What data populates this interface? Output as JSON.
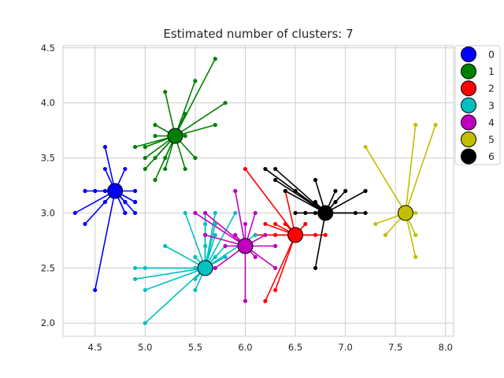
{
  "chart_data": {
    "type": "scatter",
    "title": "Estimated number of clusters: 7",
    "xlabel": "",
    "ylabel": "",
    "xlim": [
      4.18,
      8.08
    ],
    "ylim": [
      1.88,
      4.52
    ],
    "xticks": [
      4.5,
      5.0,
      5.5,
      6.0,
      6.5,
      7.0,
      7.5,
      8.0
    ],
    "yticks": [
      2.0,
      2.5,
      3.0,
      3.5,
      4.0,
      4.5
    ],
    "grid": true,
    "legend_position": "upper-right-outside",
    "series": [
      {
        "name": "0",
        "color": "#0000ff",
        "center": [
          4.7,
          3.2
        ],
        "points": [
          [
            4.3,
            3.0
          ],
          [
            4.4,
            2.9
          ],
          [
            4.4,
            3.2
          ],
          [
            4.5,
            2.3
          ],
          [
            4.5,
            3.2
          ],
          [
            4.6,
            3.1
          ],
          [
            4.6,
            3.2
          ],
          [
            4.6,
            3.4
          ],
          [
            4.6,
            3.6
          ],
          [
            4.7,
            3.2
          ],
          [
            4.7,
            3.2
          ],
          [
            4.8,
            3.0
          ],
          [
            4.8,
            3.0
          ],
          [
            4.8,
            3.1
          ],
          [
            4.8,
            3.1
          ],
          [
            4.8,
            3.4
          ],
          [
            4.9,
            3.0
          ],
          [
            4.9,
            3.1
          ],
          [
            4.9,
            3.1
          ],
          [
            4.9,
            3.2
          ]
        ]
      },
      {
        "name": "1",
        "color": "#008000",
        "center": [
          5.3,
          3.7
        ],
        "points": [
          [
            4.9,
            3.6
          ],
          [
            5.0,
            3.4
          ],
          [
            5.0,
            3.5
          ],
          [
            5.0,
            3.6
          ],
          [
            5.0,
            3.6
          ],
          [
            5.1,
            3.3
          ],
          [
            5.1,
            3.5
          ],
          [
            5.1,
            3.7
          ],
          [
            5.1,
            3.8
          ],
          [
            5.2,
            3.4
          ],
          [
            5.2,
            3.5
          ],
          [
            5.2,
            4.1
          ],
          [
            5.3,
            3.7
          ],
          [
            5.4,
            3.4
          ],
          [
            5.4,
            3.7
          ],
          [
            5.4,
            3.9
          ],
          [
            5.5,
            3.5
          ],
          [
            5.5,
            4.2
          ],
          [
            5.7,
            3.8
          ],
          [
            5.7,
            4.4
          ],
          [
            5.8,
            4.0
          ]
        ]
      },
      {
        "name": "2",
        "color": "#ff0000",
        "center": [
          6.5,
          2.8
        ],
        "points": [
          [
            6.0,
            3.4
          ],
          [
            6.1,
            2.8
          ],
          [
            6.2,
            2.2
          ],
          [
            6.2,
            2.9
          ],
          [
            6.3,
            2.3
          ],
          [
            6.3,
            2.8
          ],
          [
            6.3,
            2.9
          ],
          [
            6.4,
            2.9
          ],
          [
            6.4,
            3.2
          ],
          [
            6.5,
            2.8
          ],
          [
            6.6,
            2.9
          ],
          [
            6.7,
            2.8
          ],
          [
            6.8,
            2.8
          ]
        ]
      },
      {
        "name": "3",
        "color": "#00c0c0",
        "center": [
          5.6,
          2.5
        ],
        "points": [
          [
            4.9,
            2.4
          ],
          [
            4.9,
            2.5
          ],
          [
            5.0,
            2.0
          ],
          [
            5.0,
            2.3
          ],
          [
            5.0,
            2.5
          ],
          [
            5.2,
            2.7
          ],
          [
            5.4,
            3.0
          ],
          [
            5.5,
            2.3
          ],
          [
            5.5,
            2.4
          ],
          [
            5.5,
            2.5
          ],
          [
            5.5,
            2.6
          ],
          [
            5.6,
            2.5
          ],
          [
            5.6,
            2.7
          ],
          [
            5.6,
            2.8
          ],
          [
            5.6,
            2.9
          ],
          [
            5.6,
            3.0
          ],
          [
            5.7,
            2.5
          ],
          [
            5.7,
            2.6
          ],
          [
            5.7,
            2.8
          ],
          [
            5.7,
            2.9
          ],
          [
            5.7,
            3.0
          ],
          [
            5.8,
            2.6
          ],
          [
            5.8,
            2.7
          ],
          [
            5.9,
            3.0
          ],
          [
            6.1,
            2.8
          ]
        ]
      },
      {
        "name": "4",
        "color": "#c000c0",
        "center": [
          6.0,
          2.7
        ],
        "points": [
          [
            5.5,
            3.0
          ],
          [
            5.6,
            2.8
          ],
          [
            5.6,
            3.0
          ],
          [
            5.7,
            2.5
          ],
          [
            5.8,
            2.7
          ],
          [
            5.9,
            2.8
          ],
          [
            5.9,
            3.2
          ],
          [
            6.0,
            2.2
          ],
          [
            6.0,
            2.7
          ],
          [
            6.0,
            2.9
          ],
          [
            6.1,
            2.6
          ],
          [
            6.1,
            3.0
          ],
          [
            6.2,
            2.8
          ],
          [
            6.3,
            2.5
          ],
          [
            6.3,
            2.7
          ]
        ]
      },
      {
        "name": "5",
        "color": "#c0c000",
        "center": [
          7.6,
          3.0
        ],
        "points": [
          [
            7.2,
            3.6
          ],
          [
            7.3,
            2.9
          ],
          [
            7.4,
            2.8
          ],
          [
            7.6,
            3.0
          ],
          [
            7.7,
            2.6
          ],
          [
            7.7,
            2.8
          ],
          [
            7.7,
            3.0
          ],
          [
            7.7,
            3.8
          ],
          [
            7.9,
            3.8
          ]
        ]
      },
      {
        "name": "6",
        "color": "#000000",
        "center": [
          6.8,
          3.0
        ],
        "points": [
          [
            6.2,
            3.4
          ],
          [
            6.3,
            3.3
          ],
          [
            6.3,
            3.4
          ],
          [
            6.4,
            3.2
          ],
          [
            6.5,
            3.0
          ],
          [
            6.5,
            3.2
          ],
          [
            6.6,
            3.0
          ],
          [
            6.7,
            2.5
          ],
          [
            6.7,
            3.0
          ],
          [
            6.7,
            3.1
          ],
          [
            6.7,
            3.3
          ],
          [
            6.8,
            3.0
          ],
          [
            6.9,
            3.1
          ],
          [
            6.9,
            3.2
          ],
          [
            7.0,
            3.2
          ],
          [
            7.1,
            3.0
          ],
          [
            7.2,
            3.0
          ],
          [
            7.2,
            3.2
          ]
        ]
      }
    ]
  }
}
